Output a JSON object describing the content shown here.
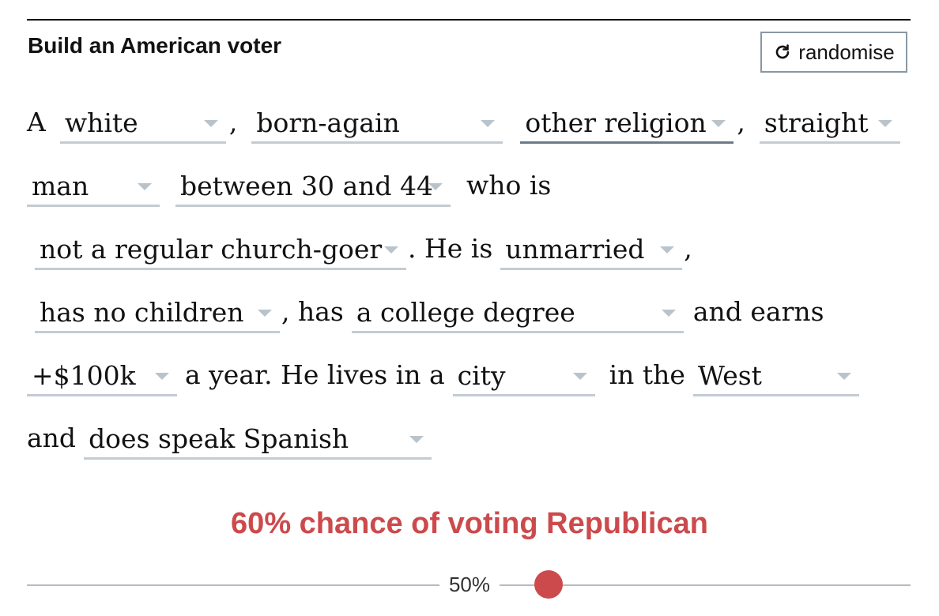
{
  "header": {
    "title": "Build an American voter",
    "randomise_label": "randomise",
    "randomise_icon": "refresh-icon"
  },
  "sentence": {
    "article": "A",
    "comma1": ",",
    "comma2": ",",
    "who_is": "who is",
    "he_is": ". He is",
    "comma3": ",",
    "has": ", has",
    "and_earns": "and earns",
    "a_year": "a year. He lives in a",
    "in_the": "in the",
    "and": "and",
    "race": "white",
    "evangelical": "born-again",
    "religion": "other religion",
    "orientation": "straight",
    "gender": "man",
    "age": "between 30 and 44",
    "church": "not a regular church-goer",
    "marital": "unmarried",
    "children": "has no children",
    "education": "a college degree",
    "income": "+$100k",
    "area": "city",
    "region": "West",
    "spanish": "does speak Spanish"
  },
  "result": {
    "text": "60% chance of voting Republican",
    "color": "#cc4a4c",
    "probability": 0.6
  },
  "slider": {
    "label": "50%",
    "value": 0.6
  }
}
